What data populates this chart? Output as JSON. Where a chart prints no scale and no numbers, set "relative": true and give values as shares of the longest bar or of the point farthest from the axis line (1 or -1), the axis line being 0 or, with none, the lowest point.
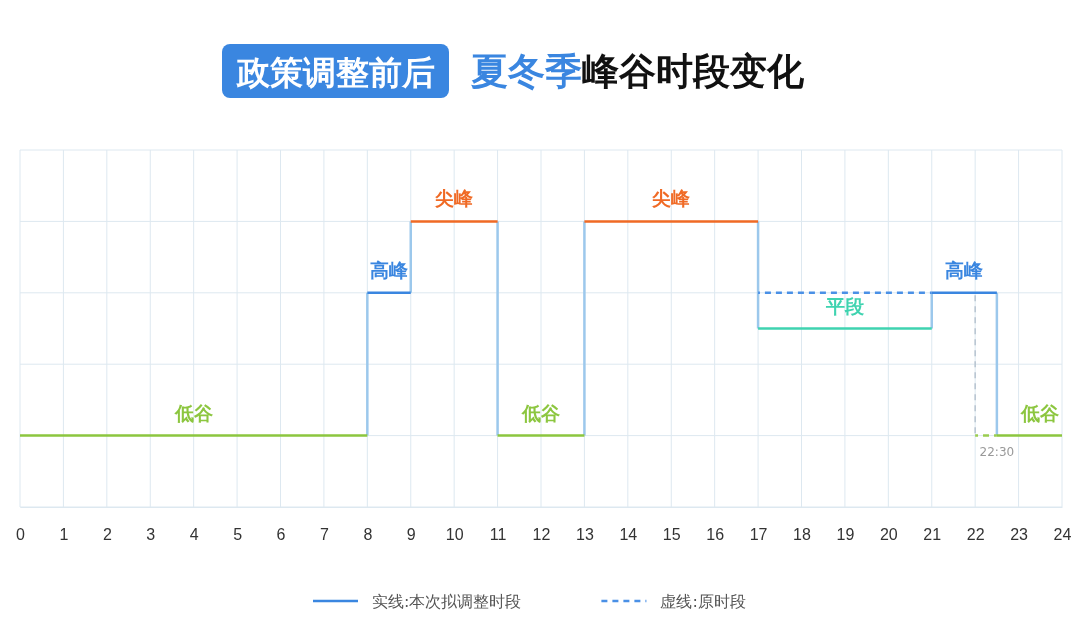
{
  "chart_data": {
    "type": "line",
    "title": "政策调整前后 夏冬季峰谷时段变化",
    "relative": true,
    "xlim": [
      0,
      24
    ],
    "xticks": [
      0,
      1,
      2,
      3,
      4,
      5,
      6,
      7,
      8,
      9,
      10,
      11,
      12,
      13,
      14,
      15,
      16,
      17,
      18,
      19,
      20,
      21,
      22,
      23,
      24
    ],
    "grid": true,
    "legend": "bottom",
    "series": [
      {
        "color": "#9cc8ec",
        "x": [
          8,
          8,
          null,
          9,
          9,
          null,
          11,
          11,
          null,
          13,
          13,
          null,
          17,
          17,
          null,
          21,
          21,
          null,
          22.5,
          22.5
        ],
        "values": [
          0.25,
          0.75,
          null,
          0.75,
          1,
          null,
          1,
          0.25,
          null,
          0.25,
          1,
          null,
          1,
          0.625,
          null,
          0.625,
          0.75,
          null,
          0.75,
          0.25
        ]
      },
      {
        "color": "#b8c4d0",
        "line_style": "dashed",
        "x": [
          22,
          22
        ],
        "values": [
          0.75,
          0.25
        ]
      },
      {
        "color": "#8cc63f",
        "x": [
          0,
          8,
          null,
          11,
          13,
          null,
          22.5,
          24
        ],
        "values": [
          0.25,
          0.25,
          null,
          0.25,
          0.25,
          null,
          0.25,
          0.25
        ]
      },
      {
        "name": "实线:本次拟调整时段",
        "color": "#3a86e0",
        "x": [
          8,
          9,
          null,
          21,
          22.5
        ],
        "values": [
          0.75,
          0.75,
          null,
          0.75,
          0.75
        ]
      },
      {
        "color": "#f06a25",
        "x": [
          9,
          11,
          null,
          13,
          17
        ],
        "values": [
          1,
          1,
          null,
          1,
          1
        ]
      },
      {
        "color": "#3fd3b0",
        "x": [
          17,
          21
        ],
        "values": [
          0.625,
          0.625
        ]
      },
      {
        "name": "虚线:原时段",
        "color": "#4a90e6",
        "line_style": "dashed",
        "x": [
          17,
          19,
          21
        ],
        "values": [
          0.75,
          0.75,
          0.75
        ]
      },
      {
        "color": "#9acd4f",
        "line_style": "dashed",
        "x": [
          22,
          22.25,
          22.5
        ],
        "values": [
          0.25,
          0.25,
          0.25
        ]
      }
    ],
    "annotations": [
      {
        "text": "低谷",
        "x": 4,
        "y": 0.25
      },
      {
        "text": "高峰",
        "x": 8.5,
        "y": 0.75
      },
      {
        "text": "尖峰",
        "x": 10,
        "y": 1
      },
      {
        "text": "低谷",
        "x": 12,
        "y": 0.25
      },
      {
        "text": "尖峰",
        "x": 15,
        "y": 1
      },
      {
        "text": "平段",
        "x": 19,
        "y": 0.625
      },
      {
        "text": "高峰",
        "x": 21.75,
        "y": 0.75
      },
      {
        "text": "低谷",
        "x": 23.5,
        "y": 0.25
      },
      {
        "text": "22:30",
        "x": 22.5,
        "y": 0.25
      }
    ]
  }
}
